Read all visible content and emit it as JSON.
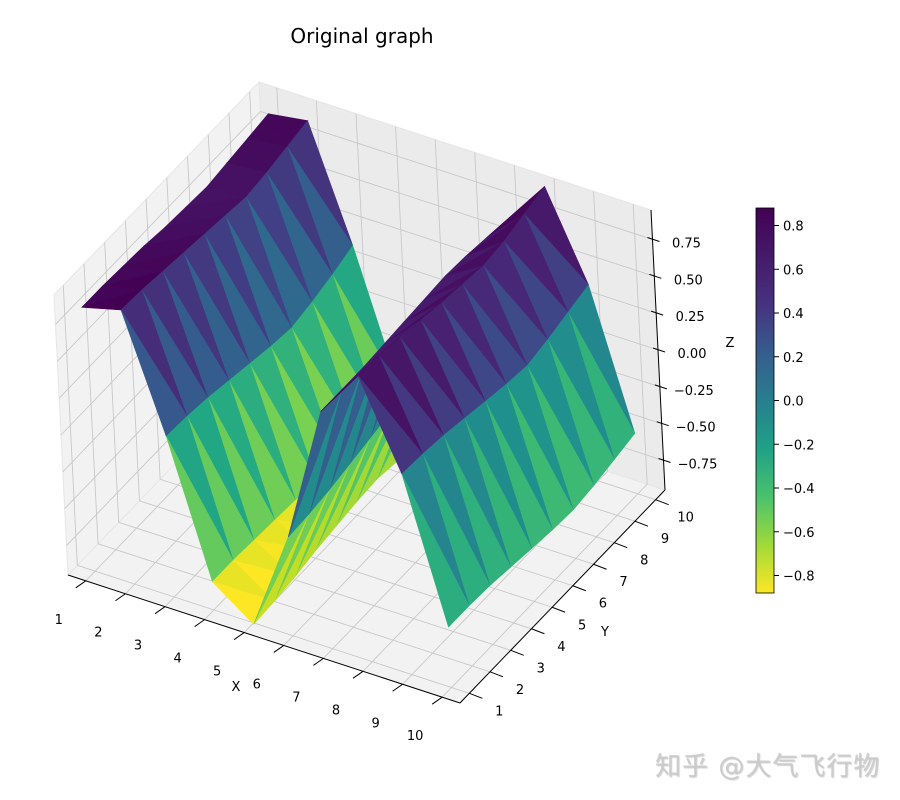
{
  "figure": {
    "title": "Original graph",
    "watermark": "知乎 @大气飞行物"
  },
  "colorbar": {
    "colormap": "viridis",
    "range": [
      -0.88,
      0.88
    ],
    "ticks": [
      "0.8",
      "0.6",
      "0.4",
      "0.2",
      "0.0",
      "−0.2",
      "−0.4",
      "−0.6",
      "−0.8"
    ],
    "tick_values": [
      0.8,
      0.6,
      0.4,
      0.2,
      0.0,
      -0.2,
      -0.4,
      -0.6,
      -0.8
    ]
  },
  "axes": {
    "xlabel": "X",
    "ylabel": "Y",
    "zlabel": "Z",
    "xticks": [
      "1",
      "2",
      "3",
      "4",
      "5",
      "6",
      "7",
      "8",
      "9",
      "10"
    ],
    "yticks": [
      "1",
      "2",
      "3",
      "4",
      "5",
      "6",
      "7",
      "8",
      "9",
      "10"
    ],
    "zticks": [
      "0.75",
      "0.50",
      "0.25",
      "0.00",
      "−0.25",
      "−0.50",
      "−0.75"
    ],
    "ztick_values": [
      0.75,
      0.5,
      0.25,
      0.0,
      -0.25,
      -0.5,
      -0.75
    ]
  },
  "chart_data": {
    "type": "surface3d",
    "title": "Original graph",
    "xlabel": "X",
    "ylabel": "Y",
    "zlabel": "Z",
    "x": [
      1,
      2,
      3,
      4,
      5,
      6,
      7,
      8,
      9,
      10
    ],
    "y": [
      1,
      2,
      3,
      4,
      5,
      6,
      7,
      8,
      9,
      10
    ],
    "xlim": [
      1,
      10
    ],
    "ylim": [
      1,
      10
    ],
    "zlim": [
      -0.95,
      0.95
    ],
    "colormap": "viridis",
    "colorbar_range": [
      -0.88,
      0.88
    ],
    "grid": true,
    "z_description": "z ≈ sin(x) over a 10×10 grid; ridges along Y, peaks near x=2 and x=8, troughs near x=5 and x=10-11",
    "z": [
      [
        0.84,
        0.84,
        0.83,
        0.82,
        0.8,
        0.79,
        0.78,
        0.8,
        0.82,
        0.84
      ],
      [
        0.91,
        0.9,
        0.88,
        0.86,
        0.84,
        0.82,
        0.8,
        0.82,
        0.85,
        0.88
      ],
      [
        0.14,
        0.13,
        0.11,
        0.08,
        0.05,
        0.02,
        0.0,
        0.03,
        0.07,
        0.12
      ],
      [
        -0.76,
        -0.76,
        -0.77,
        -0.78,
        -0.79,
        -0.8,
        -0.8,
        -0.79,
        -0.77,
        -0.75
      ],
      [
        -0.96,
        -0.95,
        -0.93,
        -0.9,
        -0.88,
        -0.86,
        -0.85,
        -0.87,
        -0.9,
        -0.93
      ],
      [
        -0.28,
        -0.27,
        -0.25,
        -0.22,
        -0.19,
        -0.16,
        -0.14,
        -0.17,
        -0.21,
        -0.25
      ],
      [
        0.66,
        0.66,
        0.66,
        0.67,
        0.68,
        0.69,
        0.7,
        0.69,
        0.67,
        0.65
      ],
      [
        0.99,
        0.98,
        0.96,
        0.93,
        0.9,
        0.88,
        0.86,
        0.88,
        0.92,
        0.96
      ],
      [
        0.41,
        0.4,
        0.38,
        0.35,
        0.32,
        0.29,
        0.27,
        0.3,
        0.34,
        0.38
      ],
      [
        -0.54,
        -0.54,
        -0.55,
        -0.57,
        -0.59,
        -0.61,
        -0.62,
        -0.6,
        -0.57,
        -0.54
      ]
    ],
    "z_row_index": "x",
    "z_col_index": "y"
  }
}
